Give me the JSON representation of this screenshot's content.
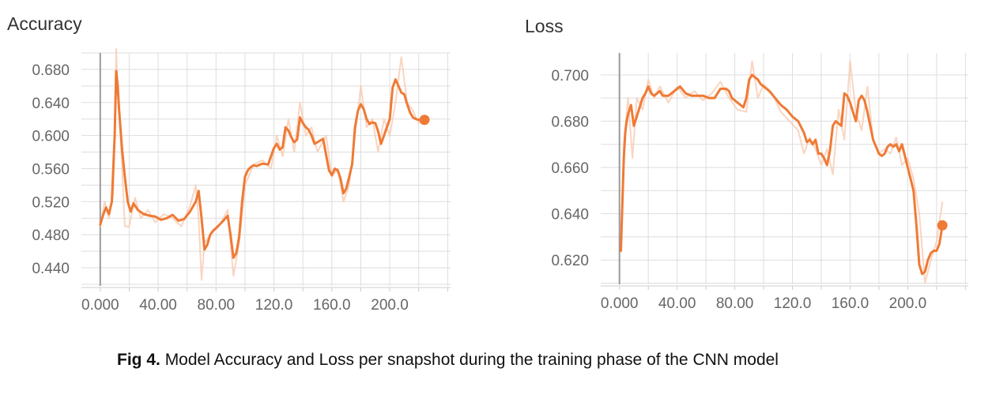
{
  "caption": {
    "label": "Fig 4.",
    "text": "Model Accuracy and Loss per snapshot during the training phase of the CNN model"
  },
  "colors": {
    "line": "#ef7a35",
    "raw": "#f8c7ac",
    "grid": "#dddddd",
    "axis_text": "#666666",
    "zero_line": "#9a9a9a"
  },
  "chart_data": [
    {
      "type": "line",
      "title": "Accuracy",
      "xlabel": "",
      "ylabel": "",
      "xlim": [
        -13,
        242
      ],
      "ylim": [
        0.418,
        0.7
      ],
      "x_tick_values": [
        0,
        40,
        80,
        120,
        160,
        200
      ],
      "x_tick_labels": [
        "0.000",
        "40.00",
        "80.00",
        "120.0",
        "160.0",
        "200.0"
      ],
      "y_tick_values": [
        0.44,
        0.48,
        0.52,
        0.56,
        0.6,
        0.64,
        0.68
      ],
      "y_tick_labels": [
        "0.440",
        "0.480",
        "0.520",
        "0.560",
        "0.600",
        "0.640",
        "0.680"
      ],
      "grid": true,
      "series": [
        {
          "role": "smoothed",
          "x": [
            0,
            2,
            4,
            6,
            8,
            10,
            11,
            12,
            13,
            15,
            17,
            19,
            21,
            23,
            26,
            30,
            34,
            38,
            42,
            46,
            50,
            54,
            58,
            62,
            66,
            68,
            70,
            72,
            74,
            76,
            78,
            80,
            84,
            88,
            90,
            92,
            94,
            96,
            98,
            100,
            102,
            104,
            106,
            108,
            112,
            116,
            120,
            122,
            124,
            126,
            128,
            130,
            132,
            134,
            136,
            138,
            140,
            142,
            144,
            146,
            148,
            150,
            154,
            158,
            160,
            162,
            164,
            166,
            168,
            170,
            172,
            174,
            176,
            178,
            180,
            182,
            184,
            186,
            188,
            190,
            192,
            194,
            196,
            198,
            200,
            202,
            204,
            206,
            208,
            210,
            212,
            214,
            216,
            218,
            220,
            222,
            224
          ],
          "y": [
            0.492,
            0.504,
            0.513,
            0.505,
            0.52,
            0.6,
            0.678,
            0.662,
            0.632,
            0.585,
            0.55,
            0.52,
            0.508,
            0.518,
            0.51,
            0.505,
            0.503,
            0.502,
            0.498,
            0.5,
            0.504,
            0.497,
            0.499,
            0.508,
            0.52,
            0.533,
            0.5,
            0.462,
            0.468,
            0.48,
            0.485,
            0.488,
            0.495,
            0.503,
            0.48,
            0.452,
            0.458,
            0.478,
            0.52,
            0.55,
            0.558,
            0.562,
            0.564,
            0.563,
            0.566,
            0.565,
            0.585,
            0.59,
            0.583,
            0.586,
            0.61,
            0.606,
            0.598,
            0.592,
            0.595,
            0.622,
            0.615,
            0.61,
            0.607,
            0.6,
            0.59,
            0.592,
            0.596,
            0.558,
            0.552,
            0.56,
            0.558,
            0.548,
            0.53,
            0.536,
            0.55,
            0.565,
            0.61,
            0.63,
            0.638,
            0.632,
            0.62,
            0.614,
            0.616,
            0.615,
            0.605,
            0.59,
            0.6,
            0.61,
            0.62,
            0.658,
            0.668,
            0.66,
            0.652,
            0.65,
            0.638,
            0.628,
            0.622,
            0.62,
            0.619,
            0.619,
            0.62
          ]
        },
        {
          "role": "raw",
          "x": [
            0,
            3,
            6,
            9,
            11,
            12,
            14,
            17,
            20,
            24,
            28,
            33,
            38,
            44,
            50,
            56,
            62,
            66,
            68,
            70,
            72,
            76,
            82,
            88,
            92,
            96,
            100,
            106,
            112,
            118,
            122,
            126,
            130,
            134,
            138,
            142,
            146,
            150,
            156,
            160,
            164,
            168,
            172,
            176,
            180,
            184,
            188,
            192,
            196,
            200,
            204,
            208,
            212,
            216,
            220,
            224
          ],
          "y": [
            0.49,
            0.52,
            0.5,
            0.53,
            0.705,
            0.66,
            0.6,
            0.49,
            0.49,
            0.525,
            0.5,
            0.51,
            0.495,
            0.505,
            0.5,
            0.49,
            0.515,
            0.54,
            0.5,
            0.425,
            0.47,
            0.48,
            0.49,
            0.51,
            0.43,
            0.47,
            0.54,
            0.565,
            0.57,
            0.56,
            0.6,
            0.575,
            0.62,
            0.58,
            0.64,
            0.6,
            0.61,
            0.58,
            0.6,
            0.55,
            0.56,
            0.52,
            0.54,
            0.6,
            0.66,
            0.61,
            0.62,
            0.58,
            0.62,
            0.6,
            0.64,
            0.695,
            0.64,
            0.63,
            0.615,
            0.62
          ]
        }
      ],
      "last_point": {
        "x": 224,
        "y": 0.619
      }
    },
    {
      "type": "line",
      "title": "Loss",
      "xlabel": "",
      "ylabel": "",
      "xlim": [
        -13,
        242
      ],
      "ylim": [
        0.6095,
        0.7095
      ],
      "x_tick_values": [
        0,
        40,
        80,
        120,
        160,
        200
      ],
      "x_tick_labels": [
        "0.000",
        "40.00",
        "80.00",
        "120.0",
        "160.0",
        "200.0"
      ],
      "y_tick_values": [
        0.62,
        0.64,
        0.66,
        0.68,
        0.7
      ],
      "y_tick_labels": [
        "0.620",
        "0.640",
        "0.660",
        "0.680",
        "0.700"
      ],
      "grid": true,
      "series": [
        {
          "role": "smoothed",
          "x": [
            1,
            2,
            3,
            4,
            5,
            6,
            8,
            10,
            12,
            14,
            16,
            18,
            20,
            22,
            24,
            26,
            28,
            30,
            34,
            38,
            42,
            46,
            50,
            54,
            58,
            62,
            66,
            68,
            70,
            72,
            74,
            76,
            78,
            80,
            82,
            84,
            86,
            88,
            90,
            92,
            94,
            96,
            98,
            100,
            104,
            108,
            112,
            116,
            120,
            124,
            128,
            130,
            132,
            134,
            136,
            138,
            140,
            142,
            144,
            146,
            148,
            150,
            152,
            154,
            156,
            158,
            160,
            162,
            164,
            166,
            168,
            170,
            172,
            174,
            176,
            178,
            180,
            182,
            184,
            186,
            188,
            190,
            192,
            194,
            196,
            198,
            200,
            202,
            204,
            206,
            208,
            210,
            212,
            214,
            216,
            218,
            220,
            222,
            224
          ],
          "y": [
            0.624,
            0.645,
            0.664,
            0.675,
            0.68,
            0.683,
            0.687,
            0.678,
            0.682,
            0.686,
            0.69,
            0.692,
            0.695,
            0.692,
            0.691,
            0.692,
            0.693,
            0.691,
            0.691,
            0.693,
            0.695,
            0.692,
            0.691,
            0.691,
            0.691,
            0.69,
            0.69,
            0.692,
            0.694,
            0.694,
            0.694,
            0.693,
            0.69,
            0.689,
            0.688,
            0.687,
            0.686,
            0.69,
            0.698,
            0.7,
            0.699,
            0.698,
            0.696,
            0.695,
            0.693,
            0.69,
            0.687,
            0.685,
            0.682,
            0.68,
            0.675,
            0.671,
            0.672,
            0.67,
            0.672,
            0.666,
            0.666,
            0.664,
            0.661,
            0.667,
            0.678,
            0.68,
            0.679,
            0.678,
            0.692,
            0.691,
            0.688,
            0.684,
            0.68,
            0.689,
            0.691,
            0.689,
            0.684,
            0.678,
            0.672,
            0.669,
            0.666,
            0.665,
            0.666,
            0.669,
            0.67,
            0.669,
            0.67,
            0.667,
            0.67,
            0.665,
            0.66,
            0.655,
            0.65,
            0.635,
            0.618,
            0.614,
            0.615,
            0.62,
            0.623,
            0.624,
            0.624,
            0.627,
            0.635
          ]
        },
        {
          "role": "raw",
          "x": [
            1,
            3,
            6,
            9,
            12,
            16,
            20,
            24,
            28,
            34,
            40,
            46,
            52,
            58,
            64,
            70,
            76,
            82,
            88,
            92,
            96,
            100,
            106,
            112,
            118,
            124,
            128,
            132,
            136,
            140,
            144,
            148,
            152,
            156,
            160,
            164,
            168,
            172,
            176,
            180,
            184,
            188,
            192,
            196,
            200,
            204,
            208,
            212,
            216,
            220,
            224
          ],
          "y": [
            0.624,
            0.67,
            0.69,
            0.664,
            0.69,
            0.685,
            0.698,
            0.69,
            0.695,
            0.688,
            0.695,
            0.69,
            0.693,
            0.689,
            0.692,
            0.697,
            0.69,
            0.685,
            0.684,
            0.706,
            0.69,
            0.696,
            0.692,
            0.684,
            0.68,
            0.676,
            0.666,
            0.673,
            0.668,
            0.661,
            0.668,
            0.657,
            0.685,
            0.672,
            0.706,
            0.684,
            0.676,
            0.695,
            0.672,
            0.666,
            0.668,
            0.666,
            0.673,
            0.661,
            0.664,
            0.655,
            0.64,
            0.61,
            0.62,
            0.628,
            0.645
          ]
        }
      ],
      "last_point": {
        "x": 224,
        "y": 0.635
      }
    }
  ]
}
